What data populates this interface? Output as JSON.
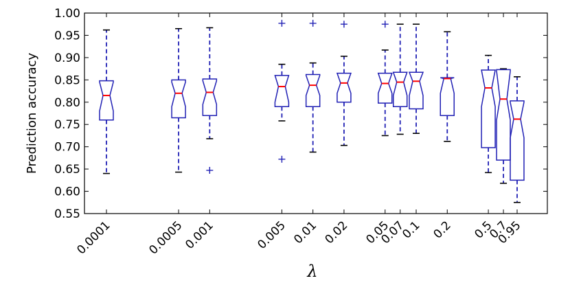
{
  "chart_data": {
    "type": "boxplot",
    "title": "",
    "xlabel": "λ",
    "ylabel": "Prediction accuracy",
    "ylim": [
      0.55,
      1.0
    ],
    "yticks": [
      "0.55",
      "0.60",
      "0.65",
      "0.70",
      "0.75",
      "0.80",
      "0.85",
      "0.90",
      "0.95",
      "1.00"
    ],
    "x_scale": "log",
    "grid": false,
    "notched": true,
    "colors": {
      "box": "#1f1fb4",
      "median": "#ff0000",
      "cap": "#000000",
      "outlier": "#1f1fb4"
    },
    "boxes": [
      {
        "label": "0.0001",
        "x": 0.0001,
        "low": 0.64,
        "q1": 0.76,
        "median": 0.815,
        "q3": 0.848,
        "high": 0.962,
        "notch": [
          0.78,
          0.845
        ],
        "outliers": []
      },
      {
        "label": "0.0005",
        "x": 0.0005,
        "low": 0.643,
        "q1": 0.765,
        "median": 0.82,
        "q3": 0.85,
        "high": 0.965,
        "notch": [
          0.79,
          0.845
        ],
        "outliers": []
      },
      {
        "label": "0.001",
        "x": 0.001,
        "low": 0.718,
        "q1": 0.77,
        "median": 0.822,
        "q3": 0.852,
        "high": 0.967,
        "notch": [
          0.795,
          0.848
        ],
        "outliers": [
          0.647
        ]
      },
      {
        "label": "0.005",
        "x": 0.005,
        "low": 0.758,
        "q1": 0.79,
        "median": 0.835,
        "q3": 0.86,
        "high": 0.885,
        "notch": [
          0.8,
          0.86
        ],
        "outliers": [
          0.672,
          0.977
        ]
      },
      {
        "label": "0.01",
        "x": 0.01,
        "low": 0.688,
        "q1": 0.79,
        "median": 0.838,
        "q3": 0.862,
        "high": 0.888,
        "notch": [
          0.815,
          0.86
        ],
        "outliers": [
          0.977
        ]
      },
      {
        "label": "0.02",
        "x": 0.02,
        "low": 0.703,
        "q1": 0.8,
        "median": 0.843,
        "q3": 0.865,
        "high": 0.903,
        "notch": [
          0.82,
          0.865
        ],
        "outliers": [
          0.975
        ]
      },
      {
        "label": "0.05",
        "x": 0.05,
        "low": 0.725,
        "q1": 0.798,
        "median": 0.842,
        "q3": 0.865,
        "high": 0.917,
        "notch": [
          0.82,
          0.865
        ],
        "outliers": [
          0.975
        ]
      },
      {
        "label": "0.07",
        "x": 0.07,
        "low": 0.728,
        "q1": 0.79,
        "median": 0.845,
        "q3": 0.867,
        "high": 0.975,
        "notch": [
          0.815,
          0.867
        ],
        "outliers": []
      },
      {
        "label": "0.1",
        "x": 0.1,
        "low": 0.73,
        "q1": 0.785,
        "median": 0.847,
        "q3": 0.867,
        "high": 0.975,
        "notch": [
          0.815,
          0.867
        ],
        "outliers": []
      },
      {
        "label": "0.2",
        "x": 0.2,
        "low": 0.712,
        "q1": 0.77,
        "median": 0.853,
        "q3": 0.855,
        "high": 0.958,
        "notch": [
          0.82,
          0.855
        ],
        "outliers": []
      },
      {
        "label": "0.5",
        "x": 0.5,
        "low": 0.642,
        "q1": 0.698,
        "median": 0.832,
        "q3": 0.872,
        "high": 0.905,
        "notch": [
          0.79,
          0.872
        ],
        "outliers": []
      },
      {
        "label": "0.7",
        "x": 0.7,
        "low": 0.618,
        "q1": 0.67,
        "median": 0.807,
        "q3": 0.873,
        "high": 0.875,
        "notch": [
          0.76,
          0.87
        ],
        "outliers": []
      },
      {
        "label": "0.95",
        "x": 0.95,
        "low": 0.575,
        "q1": 0.625,
        "median": 0.762,
        "q3": 0.803,
        "high": 0.857,
        "notch": [
          0.72,
          0.8
        ],
        "outliers": []
      }
    ]
  }
}
